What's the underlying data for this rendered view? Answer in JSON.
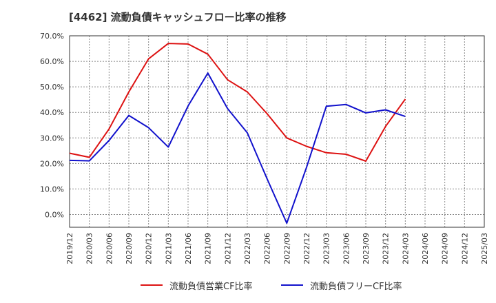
{
  "chart_data": {
    "type": "line",
    "title": "[4462]  流動負債キャッシュフロー比率の推移",
    "categories": [
      "2019/12",
      "2020/03",
      "2020/06",
      "2020/09",
      "2020/12",
      "2021/03",
      "2021/06",
      "2021/09",
      "2021/12",
      "2022/03",
      "2022/06",
      "2022/09",
      "2022/12",
      "2023/03",
      "2023/06",
      "2023/09",
      "2023/12",
      "2024/03",
      "2024/06",
      "2024/09",
      "2024/12",
      "2025/03"
    ],
    "ylim": [
      -5,
      70
    ],
    "yticks": [
      0,
      10,
      20,
      30,
      40,
      50,
      60,
      70
    ],
    "ytick_labels": [
      "0.0%",
      "10.0%",
      "20.0%",
      "30.0%",
      "40.0%",
      "50.0%",
      "60.0%",
      "70.0%"
    ],
    "grid": true,
    "legend_position": "bottom",
    "series": [
      {
        "name": "流動負債営業CF比率",
        "color": "#dd1111",
        "values": [
          24.0,
          22.4,
          33.5,
          48.0,
          61.0,
          67.0,
          66.8,
          62.8,
          52.8,
          48.0,
          39.5,
          30.0,
          26.7,
          24.2,
          23.6,
          20.9,
          34.5,
          45.2,
          null,
          null,
          null,
          null
        ]
      },
      {
        "name": "流動負債フリーCF比率",
        "color": "#1111cc",
        "values": [
          21.2,
          21.0,
          29.0,
          38.8,
          34.0,
          26.4,
          42.5,
          55.4,
          41.5,
          32.0,
          14.0,
          -3.4,
          18.5,
          42.4,
          43.1,
          39.8,
          41.0,
          38.4,
          null,
          null,
          null,
          null
        ]
      }
    ]
  }
}
